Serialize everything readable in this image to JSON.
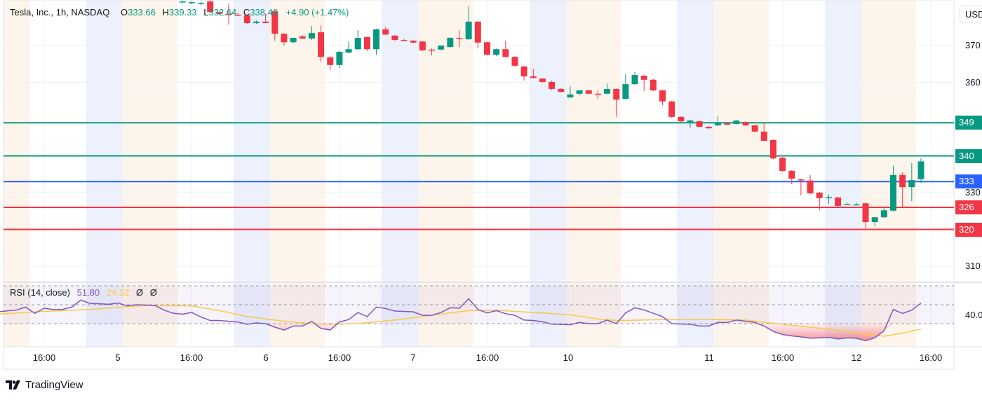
{
  "legend": {
    "symbol": "Tesla, Inc., 1h, NASDAQ",
    "open_key": "O",
    "open": "333.66",
    "high_key": "H",
    "high": "339.33",
    "low_key": "L",
    "low": "332.64",
    "close_key": "C",
    "close": "338.49",
    "change": "+4.90 (+1.47%)"
  },
  "currency_button": "USD",
  "price_ticks": [
    "370",
    "360",
    "330",
    "310"
  ],
  "price_tick_values": [
    370,
    360,
    330,
    310
  ],
  "levels": [
    {
      "label": "349",
      "value": 349,
      "color": "#089981"
    },
    {
      "label": "340",
      "value": 340,
      "color": "#089981"
    },
    {
      "label": "333",
      "value": 333,
      "color": "#2962ff"
    },
    {
      "label": "326",
      "value": 326,
      "color": "#f23645"
    },
    {
      "label": "320",
      "value": 320,
      "color": "#f23645"
    }
  ],
  "time_labels": [
    "16:00",
    "5",
    "16:00",
    "6",
    "16:00",
    "7",
    "16:00",
    "10",
    "11",
    "16:00",
    "12",
    "16:00"
  ],
  "rsi": {
    "title": "RSI (14, close)",
    "value": "51.80",
    "ma_value": "24.32",
    "extra1": "Ø",
    "extra2": "Ø",
    "axis_label": "40.0",
    "bands": [
      70,
      50,
      30
    ],
    "line_color": "#7e57c2",
    "ma_color": "#f7c948"
  },
  "colors": {
    "up": "#089981",
    "down": "#f23645"
  },
  "branding": "TradingView",
  "chart_data": {
    "type": "candlestick",
    "interval": "1h",
    "ylim": [
      305,
      382
    ],
    "candles_ohlc": [
      [
        381.8,
        382.2,
        381.4,
        382.0
      ],
      [
        381.6,
        382.0,
        381.2,
        381.8
      ],
      [
        381.4,
        381.9,
        380.9,
        381.6
      ],
      [
        382.0,
        382.3,
        378.9,
        379.1
      ],
      [
        379.1,
        379.4,
        378.4,
        378.6
      ],
      [
        378.6,
        381.4,
        375.7,
        378.4
      ],
      [
        378.4,
        378.8,
        378.0,
        378.2
      ],
      [
        378.2,
        378.4,
        375.9,
        376.1
      ],
      [
        376.1,
        376.8,
        375.9,
        376.5
      ],
      [
        376.5,
        378.6,
        376.1,
        376.1
      ],
      [
        379.3,
        379.5,
        371.3,
        373.2
      ],
      [
        373.2,
        373.4,
        370.0,
        370.9
      ],
      [
        370.9,
        371.5,
        370.6,
        372.1
      ],
      [
        372.5,
        372.7,
        371.7,
        371.9
      ],
      [
        371.9,
        375.3,
        371.5,
        373.4
      ],
      [
        373.6,
        375.5,
        365.6,
        366.9
      ],
      [
        366.8,
        367.0,
        363.3,
        364.7
      ],
      [
        364.7,
        368.5,
        363.9,
        368.3
      ],
      [
        368.1,
        371.1,
        367.9,
        369.0
      ],
      [
        369.0,
        374.2,
        368.7,
        372.1
      ],
      [
        372.3,
        372.5,
        368.5,
        369.0
      ],
      [
        369.0,
        374.6,
        367.5,
        374.4
      ],
      [
        374.4,
        375.1,
        372.8,
        373.0
      ],
      [
        372.7,
        372.9,
        371.3,
        371.5
      ],
      [
        371.5,
        371.8,
        371.2,
        371.4
      ],
      [
        371.3,
        371.5,
        370.6,
        370.8
      ],
      [
        371.1,
        371.3,
        368.5,
        368.7
      ],
      [
        368.9,
        369.2,
        367.3,
        368.8
      ],
      [
        368.9,
        369.6,
        368.7,
        370.0
      ],
      [
        369.6,
        372.3,
        369.4,
        372.1
      ],
      [
        372.1,
        374.2,
        369.6,
        372.0
      ],
      [
        371.7,
        380.7,
        371.5,
        376.5
      ],
      [
        376.5,
        376.7,
        369.2,
        370.8
      ],
      [
        370.9,
        371.1,
        367.3,
        367.5
      ],
      [
        367.5,
        369.2,
        367.1,
        369.0
      ],
      [
        369.0,
        371.3,
        366.7,
        366.9
      ],
      [
        366.9,
        367.1,
        364.3,
        364.5
      ],
      [
        364.3,
        364.5,
        360.5,
        361.6
      ],
      [
        361.6,
        363.7,
        361.0,
        361.2
      ],
      [
        361.0,
        361.2,
        359.9,
        360.1
      ],
      [
        360.1,
        360.5,
        357.8,
        358.2
      ],
      [
        358.2,
        358.4,
        357.2,
        357.4
      ],
      [
        355.9,
        359.0,
        355.7,
        356.7
      ],
      [
        356.9,
        357.8,
        356.5,
        357.8
      ],
      [
        357.8,
        358.0,
        356.7,
        356.9
      ],
      [
        356.9,
        358.0,
        355.5,
        356.8
      ],
      [
        356.9,
        359.7,
        356.7,
        358.2
      ],
      [
        358.2,
        358.4,
        350.6,
        355.3
      ],
      [
        355.5,
        362.2,
        355.3,
        359.5
      ],
      [
        359.5,
        362.8,
        359.3,
        362.0
      ],
      [
        361.8,
        362.0,
        357.6,
        360.7
      ],
      [
        360.7,
        361.0,
        357.6,
        357.8
      ],
      [
        357.8,
        358.0,
        353.8,
        354.8
      ],
      [
        354.8,
        355.0,
        350.4,
        350.6
      ],
      [
        350.6,
        350.8,
        349.2,
        349.4
      ],
      [
        349.2,
        349.8,
        347.7,
        349.6
      ],
      [
        349.4,
        349.6,
        347.7,
        347.9
      ],
      [
        347.9,
        348.1,
        347.3,
        347.5
      ],
      [
        348.3,
        350.8,
        348.1,
        348.9
      ],
      [
        348.9,
        349.1,
        348.3,
        348.5
      ],
      [
        348.7,
        349.8,
        348.5,
        349.6
      ],
      [
        349.2,
        349.4,
        348.1,
        348.3
      ],
      [
        348.3,
        348.5,
        346.4,
        346.6
      ],
      [
        346.6,
        349.0,
        344.0,
        344.1
      ],
      [
        344.3,
        344.5,
        339.1,
        339.3
      ],
      [
        339.5,
        339.7,
        335.7,
        335.9
      ],
      [
        335.9,
        336.1,
        332.3,
        333.8
      ],
      [
        333.6,
        333.8,
        329.2,
        333.4
      ],
      [
        333.3,
        334.8,
        329.6,
        329.8
      ],
      [
        330.0,
        330.2,
        325.2,
        328.5
      ],
      [
        328.7,
        329.5,
        327.0,
        328.8
      ],
      [
        328.7,
        328.9,
        326.2,
        326.4
      ],
      [
        326.8,
        327.3,
        326.6,
        326.9
      ],
      [
        326.8,
        327.2,
        326.6,
        326.8
      ],
      [
        327.1,
        327.3,
        320.3,
        322.0
      ],
      [
        322.0,
        323.3,
        320.9,
        323.3
      ],
      [
        323.3,
        325.8,
        323.1,
        325.2
      ],
      [
        325.1,
        337.3,
        324.9,
        334.8
      ],
      [
        334.8,
        335.5,
        325.8,
        331.5
      ],
      [
        331.5,
        338.0,
        327.7,
        333.4
      ],
      [
        333.66,
        339.33,
        332.64,
        338.49
      ]
    ],
    "rsi_values": [
      42.5,
      43.5,
      44.3,
      47.5,
      40.8,
      46.3,
      45,
      45,
      47.5,
      55,
      51.3,
      51,
      50.5,
      51.8,
      48.8,
      50,
      49.6,
      49.3,
      44.3,
      41,
      40,
      41.8,
      37,
      33.3,
      33.3,
      32.5,
      31.8,
      29.3,
      30.8,
      30,
      26.3,
      23.3,
      27.5,
      27.5,
      32.5,
      25,
      23.3,
      31.8,
      34.3,
      41.8,
      37.5,
      47.5,
      46,
      43.3,
      43,
      42.5,
      38.8,
      38.8,
      41.8,
      46.8,
      46.3,
      56.3,
      45,
      41.3,
      43.8,
      40.5,
      38.8,
      33.8,
      33.3,
      32,
      29.5,
      29.2,
      28.8,
      31.3,
      30,
      30,
      33.8,
      30,
      41.3,
      46.8,
      44.5,
      41,
      37.5,
      30,
      29.6,
      29.3,
      27.5,
      27.5,
      31.3,
      31.3,
      33.8,
      32.5,
      31.3,
      27.5,
      21.8,
      18.5,
      17,
      16,
      14.5,
      15,
      15.5,
      13.8,
      15,
      14.5,
      12,
      15,
      22.5,
      45,
      40.8,
      44.3,
      51.8
    ],
    "rsi_ma_points": [
      [
        0,
        40
      ],
      [
        4,
        42.5
      ],
      [
        10,
        45
      ],
      [
        16,
        49.3
      ],
      [
        21,
        48.8
      ],
      [
        24,
        43.8
      ],
      [
        27,
        37.5
      ],
      [
        31,
        32.5
      ],
      [
        34,
        30
      ],
      [
        36,
        29.3
      ],
      [
        39,
        30
      ],
      [
        43,
        33.8
      ],
      [
        46,
        37.5
      ],
      [
        49,
        41.3
      ],
      [
        51,
        43.8
      ],
      [
        54,
        44.3
      ],
      [
        58,
        41.8
      ],
      [
        62,
        39.3
      ],
      [
        65,
        35
      ],
      [
        67,
        33.3
      ],
      [
        72,
        34.3
      ],
      [
        78,
        34.3
      ],
      [
        81,
        33.8
      ],
      [
        85,
        29.3
      ],
      [
        88,
        26.3
      ],
      [
        91,
        23
      ],
      [
        94,
        18.3
      ],
      [
        96,
        16.8
      ],
      [
        98,
        20
      ],
      [
        100,
        24.3
      ]
    ]
  }
}
